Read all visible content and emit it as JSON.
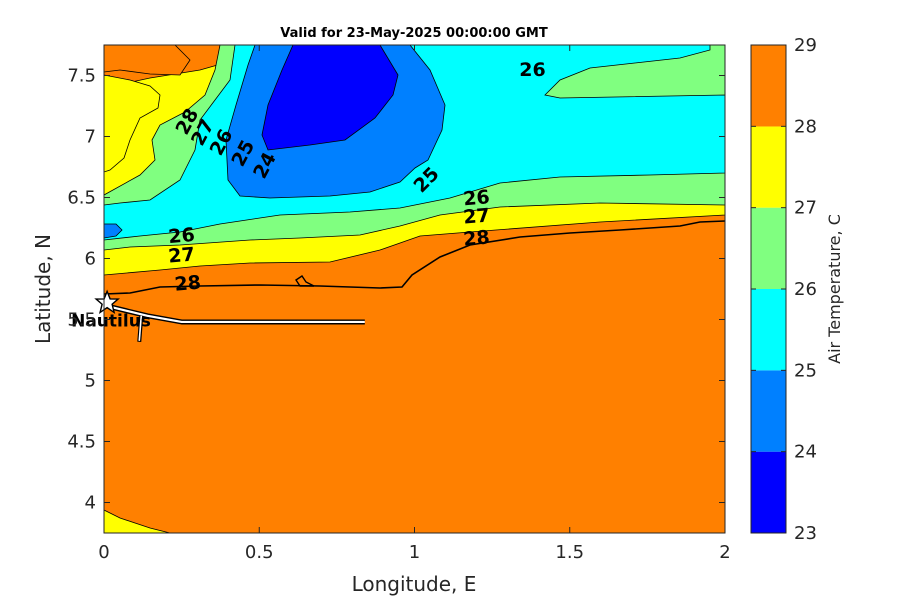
{
  "chart_data": {
    "type": "contourf",
    "title": "Valid for 23-May-2025 00:00:00 GMT",
    "xlabel": "Longitude, E",
    "ylabel": "Latitude, N",
    "xlim": [
      0,
      2
    ],
    "ylim": [
      3.75,
      7.75
    ],
    "xticks": [
      0,
      0.5,
      1,
      1.5,
      2
    ],
    "xtick_labels": [
      "0",
      "0.5",
      "1",
      "1.5",
      "2"
    ],
    "yticks": [
      4,
      4.5,
      5,
      5.5,
      6,
      6.5,
      7,
      7.5
    ],
    "ytick_labels": [
      "4",
      "4.5",
      "5",
      "5.5",
      "6",
      "6.5",
      "7",
      "7.5"
    ],
    "colorbar": {
      "label": "Air Temperature, C",
      "ticks": [
        23,
        24,
        25,
        26,
        27,
        28,
        29
      ],
      "tick_labels": [
        "23",
        "24",
        "25",
        "26",
        "27",
        "28",
        "29"
      ],
      "bands": [
        {
          "min": 23,
          "max": 24,
          "color": "#0000ff"
        },
        {
          "min": 24,
          "max": 25,
          "color": "#0080ff"
        },
        {
          "min": 25,
          "max": 26,
          "color": "#00ffff"
        },
        {
          "min": 26,
          "max": 27,
          "color": "#80ff80"
        },
        {
          "min": 27,
          "max": 28,
          "color": "#ffff00"
        },
        {
          "min": 28,
          "max": 29,
          "color": "#ff8000"
        }
      ],
      "overflow_color": "#ff0000"
    },
    "contour_labels": [
      {
        "text": "28",
        "lon": 0.27,
        "lat": 7.12,
        "rotate": -62
      },
      {
        "text": "27",
        "lon": 0.32,
        "lat": 7.03,
        "rotate": -62
      },
      {
        "text": "26",
        "lon": 0.38,
        "lat": 6.95,
        "rotate": -62
      },
      {
        "text": "25",
        "lon": 0.45,
        "lat": 6.86,
        "rotate": -62
      },
      {
        "text": "24",
        "lon": 0.52,
        "lat": 6.76,
        "rotate": -62
      },
      {
        "text": "26",
        "lon": 1.38,
        "lat": 7.54,
        "rotate": 0
      },
      {
        "text": "25",
        "lon": 1.04,
        "lat": 6.64,
        "rotate": -45
      },
      {
        "text": "26",
        "lon": 0.25,
        "lat": 6.18,
        "rotate": -5
      },
      {
        "text": "27",
        "lon": 0.25,
        "lat": 6.02,
        "rotate": -5
      },
      {
        "text": "28",
        "lon": 0.27,
        "lat": 5.79,
        "rotate": -5
      },
      {
        "text": "26",
        "lon": 1.2,
        "lat": 6.49,
        "rotate": -5
      },
      {
        "text": "27",
        "lon": 1.2,
        "lat": 6.34,
        "rotate": -5
      },
      {
        "text": "28",
        "lon": 1.2,
        "lat": 6.16,
        "rotate": -5
      }
    ],
    "station": {
      "name": "Nautilus",
      "lon": 0.01,
      "lat": 5.64
    },
    "track": {
      "lon": [
        0.01,
        0.14,
        0.25,
        0.5,
        0.84
      ],
      "lat": [
        5.61,
        5.53,
        5.48,
        5.48,
        5.48
      ]
    },
    "coastline_points": [
      {
        "lon": 0.0,
        "lat": 5.6
      },
      {
        "lon": 0.1,
        "lat": 5.66
      },
      {
        "lon": 0.25,
        "lat": 5.72
      },
      {
        "lon": 0.6,
        "lat": 5.77
      },
      {
        "lon": 0.95,
        "lat": 5.8
      },
      {
        "lon": 1.12,
        "lat": 6.08
      },
      {
        "lon": 1.5,
        "lat": 6.2
      },
      {
        "lon": 1.8,
        "lat": 6.25
      },
      {
        "lon": 2.0,
        "lat": 6.28
      }
    ]
  }
}
